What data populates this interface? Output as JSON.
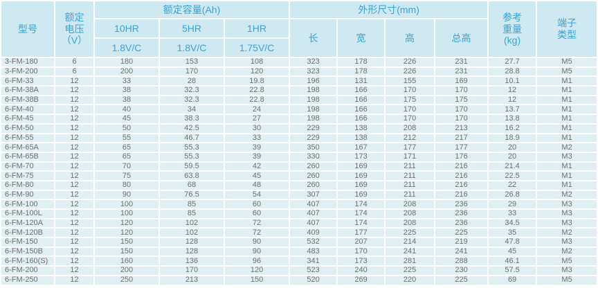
{
  "colors": {
    "header_bg": "#cfe9f3",
    "header_text": "#35a3da",
    "cell_bg": "#dfeff2",
    "cell_text": "#6f6f6f",
    "background": "#ffffff"
  },
  "table": {
    "headers": {
      "model": "型号",
      "voltage": "额定\n电压\n（V）",
      "capacity_group": "额定容量(Ah)",
      "capacity_subheaders": [
        {
          "rate": "10HR",
          "cutoff": "1.8V/C"
        },
        {
          "rate": "5HR",
          "cutoff": "1.8V/C"
        },
        {
          "rate": "1HR",
          "cutoff": "1.75V/C"
        }
      ],
      "dimensions_group": "外形尺寸(mm)",
      "dimension_subheaders": [
        "长",
        "宽",
        "高",
        "总高"
      ],
      "weight": "参考\n重量\n(kg)",
      "terminal": "端子\n类型"
    }
  },
  "chart_data": {
    "type": "table",
    "title": "电池规格参数表",
    "columns": [
      "型号",
      "额定电压(V)",
      "额定容量 10HR 1.8V/C (Ah)",
      "额定容量 5HR 1.8V/C (Ah)",
      "额定容量 1HR 1.75V/C (Ah)",
      "长(mm)",
      "宽(mm)",
      "高(mm)",
      "总高(mm)",
      "参考重量(kg)",
      "端子类型"
    ],
    "rows": [
      [
        "3-FM-180",
        6,
        180,
        153,
        108,
        323,
        178,
        226,
        231,
        27.7,
        "M5"
      ],
      [
        "3-FM-200",
        6,
        200,
        170,
        120,
        323,
        178,
        226,
        231,
        28.8,
        "M5"
      ],
      [
        "6-FM-33",
        12,
        33,
        28,
        19.8,
        196,
        131,
        155,
        169,
        10.1,
        "M1"
      ],
      [
        "6-FM-38A",
        12,
        38,
        32.3,
        22.8,
        198,
        166,
        170,
        170,
        12,
        "M1"
      ],
      [
        "6-FM-38B",
        12,
        38,
        32.3,
        22.8,
        198,
        166,
        175,
        175,
        12,
        "M1"
      ],
      [
        "6-FM-40",
        12,
        40,
        34,
        24,
        198,
        166,
        170,
        170,
        13.7,
        "M1"
      ],
      [
        "6-FM-45",
        12,
        45,
        38.3,
        27,
        198,
        166,
        170,
        170,
        13.8,
        "M1"
      ],
      [
        "6-FM-50",
        12,
        50,
        42.5,
        30,
        229,
        138,
        208,
        213,
        16.2,
        "M1"
      ],
      [
        "6-FM-55",
        12,
        55,
        46.7,
        33,
        229,
        138,
        212,
        217,
        18.9,
        "M1"
      ],
      [
        "6-FM-65A",
        12,
        65,
        55.3,
        39,
        350,
        167,
        177,
        177,
        20,
        "M2"
      ],
      [
        "6-FM-65B",
        12,
        65,
        55.3,
        39,
        330,
        173,
        171,
        176,
        20,
        "M3"
      ],
      [
        "6-FM-70",
        12,
        70,
        59.5,
        42,
        260,
        169,
        211,
        216,
        21.4,
        "M1"
      ],
      [
        "6-FM-75",
        12,
        75,
        63.8,
        45,
        260,
        169,
        211,
        216,
        22.5,
        "M1"
      ],
      [
        "6-FM-80",
        12,
        80,
        68,
        48,
        260,
        169,
        211,
        216,
        22,
        "M1"
      ],
      [
        "6-FM-90",
        12,
        90,
        76.5,
        54,
        307,
        169,
        211,
        216,
        26.8,
        "M2"
      ],
      [
        "6-FM-100",
        12,
        100,
        85,
        60,
        407,
        174,
        208,
        236,
        29,
        "M3"
      ],
      [
        "6-FM-100L",
        12,
        100,
        85,
        60,
        407,
        174,
        208,
        236,
        33,
        "M3"
      ],
      [
        "6-FM-120A",
        12,
        120,
        102,
        72,
        407,
        174,
        208,
        236,
        34.5,
        "M3"
      ],
      [
        "6-FM-120B",
        12,
        120,
        102,
        72,
        409,
        177,
        225,
        225,
        35,
        "M2"
      ],
      [
        "6-FM-150",
        12,
        150,
        128,
        90,
        532,
        207,
        214,
        219,
        47.8,
        "M3"
      ],
      [
        "6-FM-150B",
        12,
        150,
        128,
        90,
        483,
        170,
        241,
        241,
        45,
        "M2"
      ],
      [
        "6-FM-160(S)",
        12,
        160,
        136,
        96,
        341,
        173,
        281,
        288,
        46.1,
        "M5"
      ],
      [
        "6-FM-200",
        12,
        200,
        170,
        120,
        523,
        240,
        225,
        230,
        57.5,
        "M3"
      ],
      [
        "6-FM-250",
        12,
        250,
        213,
        150,
        520,
        269,
        220,
        225,
        69,
        "M5"
      ]
    ]
  }
}
